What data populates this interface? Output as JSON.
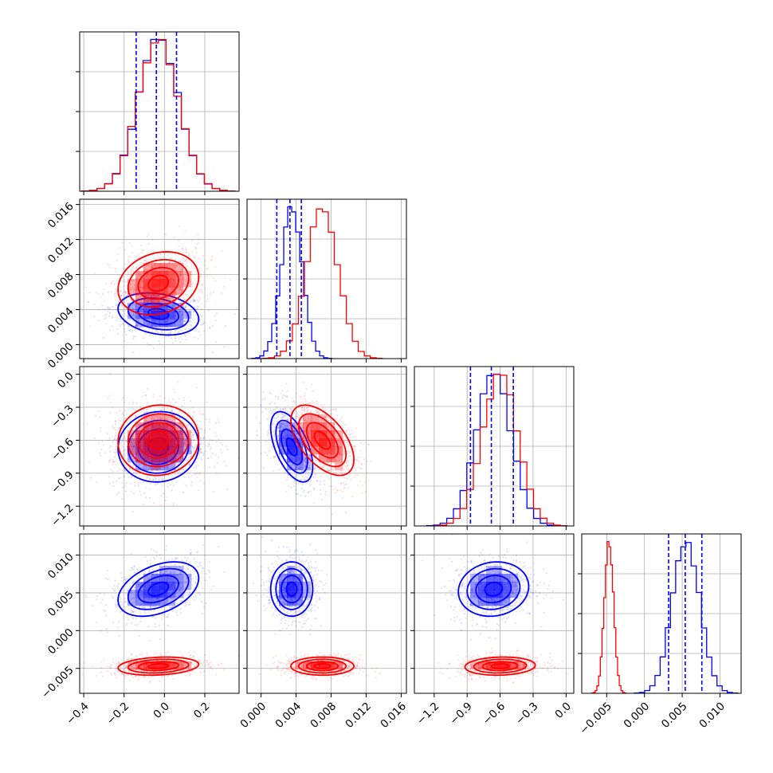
{
  "chart_data": {
    "type": "scatter",
    "title": "",
    "series": [
      {
        "name": "",
        "color": "#0000ff",
        "mean": [
          -0.03,
          0.0035,
          -0.66,
          0.0055
        ],
        "sd": [
          0.1,
          0.0012,
          0.16,
          0.0018
        ],
        "quantiles": [
          [
            -0.14,
            -0.04,
            0.06
          ],
          [
            0.0018,
            0.0033,
            0.0046
          ],
          [
            -0.87,
            -0.68,
            -0.48
          ],
          [
            0.0032,
            0.0054,
            0.0076
          ]
        ]
      },
      {
        "name": "",
        "color": "#ff0000",
        "mean": [
          -0.03,
          0.007,
          -0.6,
          -0.0047
        ],
        "sd": [
          0.1,
          0.0018,
          0.16,
          0.0006
        ],
        "quantiles": []
      }
    ],
    "params": [
      {
        "range": [
          -0.42,
          0.37
        ],
        "ticks": [
          -0.4,
          -0.2,
          0.0,
          0.2
        ],
        "tick_labels": [
          "−0.4",
          "−0.2",
          "0.0",
          "0.2"
        ]
      },
      {
        "range": [
          -0.0016,
          0.0166
        ],
        "ticks": [
          0.0,
          0.004,
          0.008,
          0.012,
          0.016
        ],
        "tick_labels": [
          "0.000",
          "0.004",
          "0.008",
          "0.012",
          "0.016"
        ]
      },
      {
        "range": [
          -1.38,
          0.07
        ],
        "ticks": [
          -1.2,
          -0.9,
          -0.6,
          -0.3,
          0.0
        ],
        "tick_labels": [
          "−1.2",
          "−0.9",
          "−0.6",
          "−0.3",
          "0.0"
        ]
      },
      {
        "range": [
          -0.0083,
          0.0128
        ],
        "ticks": [
          -0.005,
          0.0,
          0.005,
          0.01
        ],
        "tick_labels": [
          "−0.005",
          "0.000",
          "0.005",
          "0.010"
        ]
      }
    ],
    "correlations": [
      {
        "pair": [
          1,
          0
        ],
        "blue": -0.25,
        "red": 0.2
      },
      {
        "pair": [
          2,
          0
        ],
        "blue": 0.05,
        "red": 0.05
      },
      {
        "pair": [
          2,
          1
        ],
        "blue": -0.55,
        "red": -0.55
      },
      {
        "pair": [
          3,
          0
        ],
        "blue": 0.4,
        "red": 0.2
      },
      {
        "pair": [
          3,
          1
        ],
        "blue": 0.0,
        "red": 0.0
      },
      {
        "pair": [
          3,
          2
        ],
        "blue": 0.1,
        "red": 0.1
      }
    ],
    "contour_levels": [
      0.5,
      1.0,
      1.5,
      2.0
    ],
    "grid": true,
    "legend": "none"
  }
}
